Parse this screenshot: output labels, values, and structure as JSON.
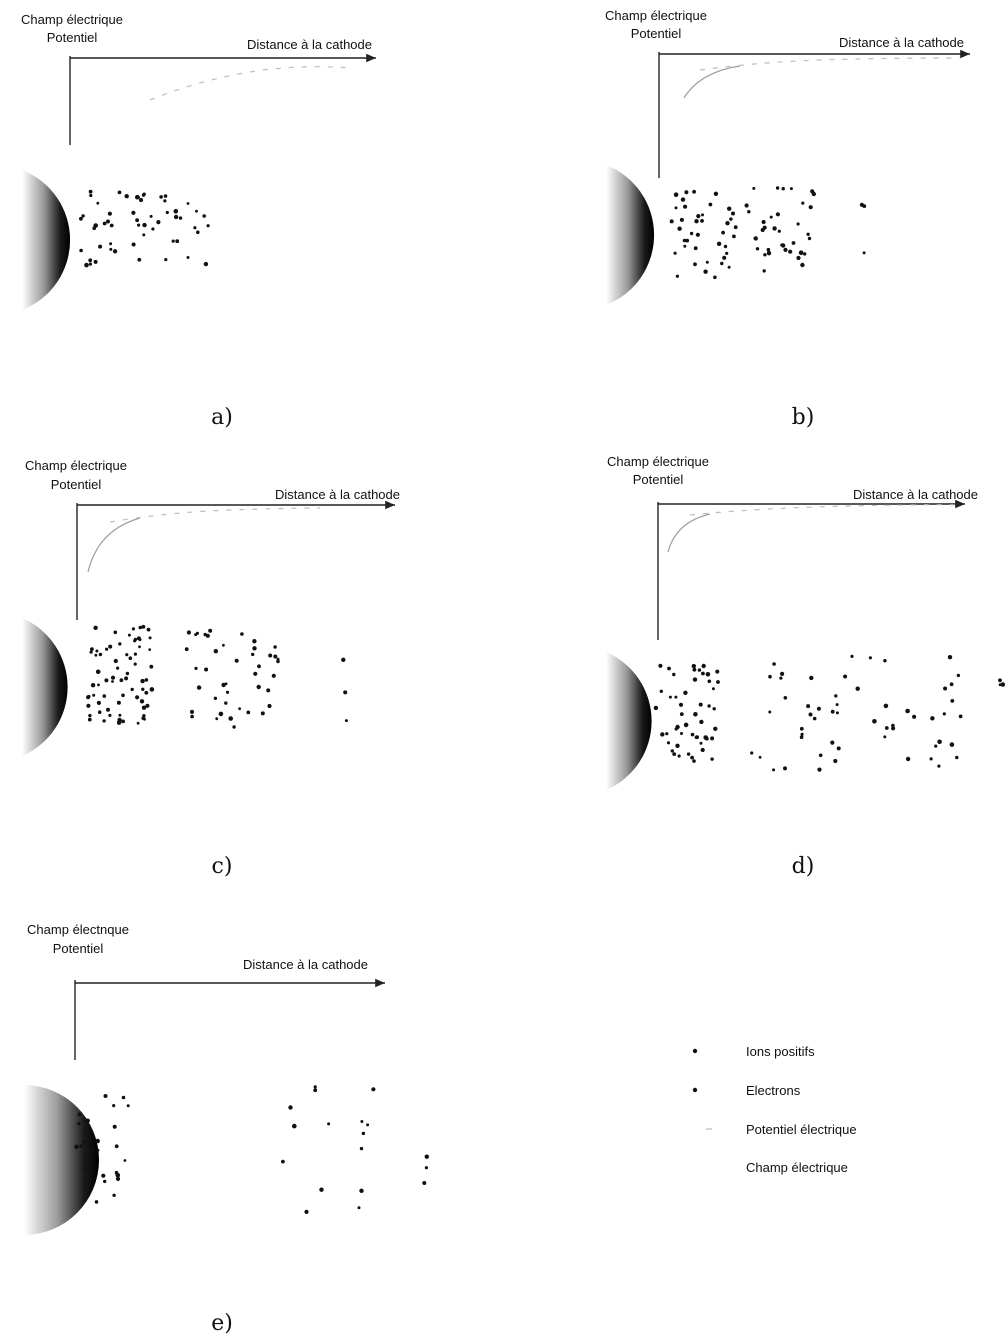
{
  "panels": [
    {
      "id": "a",
      "caption": "a)",
      "ylabel_line1": "Champ électrique",
      "ylabel_line2": "Potentiel",
      "xlabel": "Distance à la cathode"
    },
    {
      "id": "b",
      "caption": "b)",
      "ylabel_line1": "Champ électrique",
      "ylabel_line2": "Potentiel",
      "xlabel": "Distance à la cathode"
    },
    {
      "id": "c",
      "caption": "c)",
      "ylabel_line1": "Champ électrique",
      "ylabel_line2": "Potentiel",
      "xlabel": "Distance à la cathode"
    },
    {
      "id": "d",
      "caption": "d)",
      "ylabel_line1": "Champ électrique",
      "ylabel_line2": "Potentiel",
      "xlabel": "Distance à la cathode"
    },
    {
      "id": "e",
      "caption": "e)",
      "ylabel_line1": "Champ électnque",
      "ylabel_line2": "Potentiel",
      "xlabel": "Distance à la cathode"
    }
  ],
  "legend": {
    "positive_ions": "Ions positifs",
    "electrons": "Electrons",
    "potential": "Potentiel électrique",
    "field": "Champ électrique"
  },
  "colors": {
    "ink": "#111111",
    "potential": "#bdbdbd",
    "field": "#9e9e9e"
  }
}
